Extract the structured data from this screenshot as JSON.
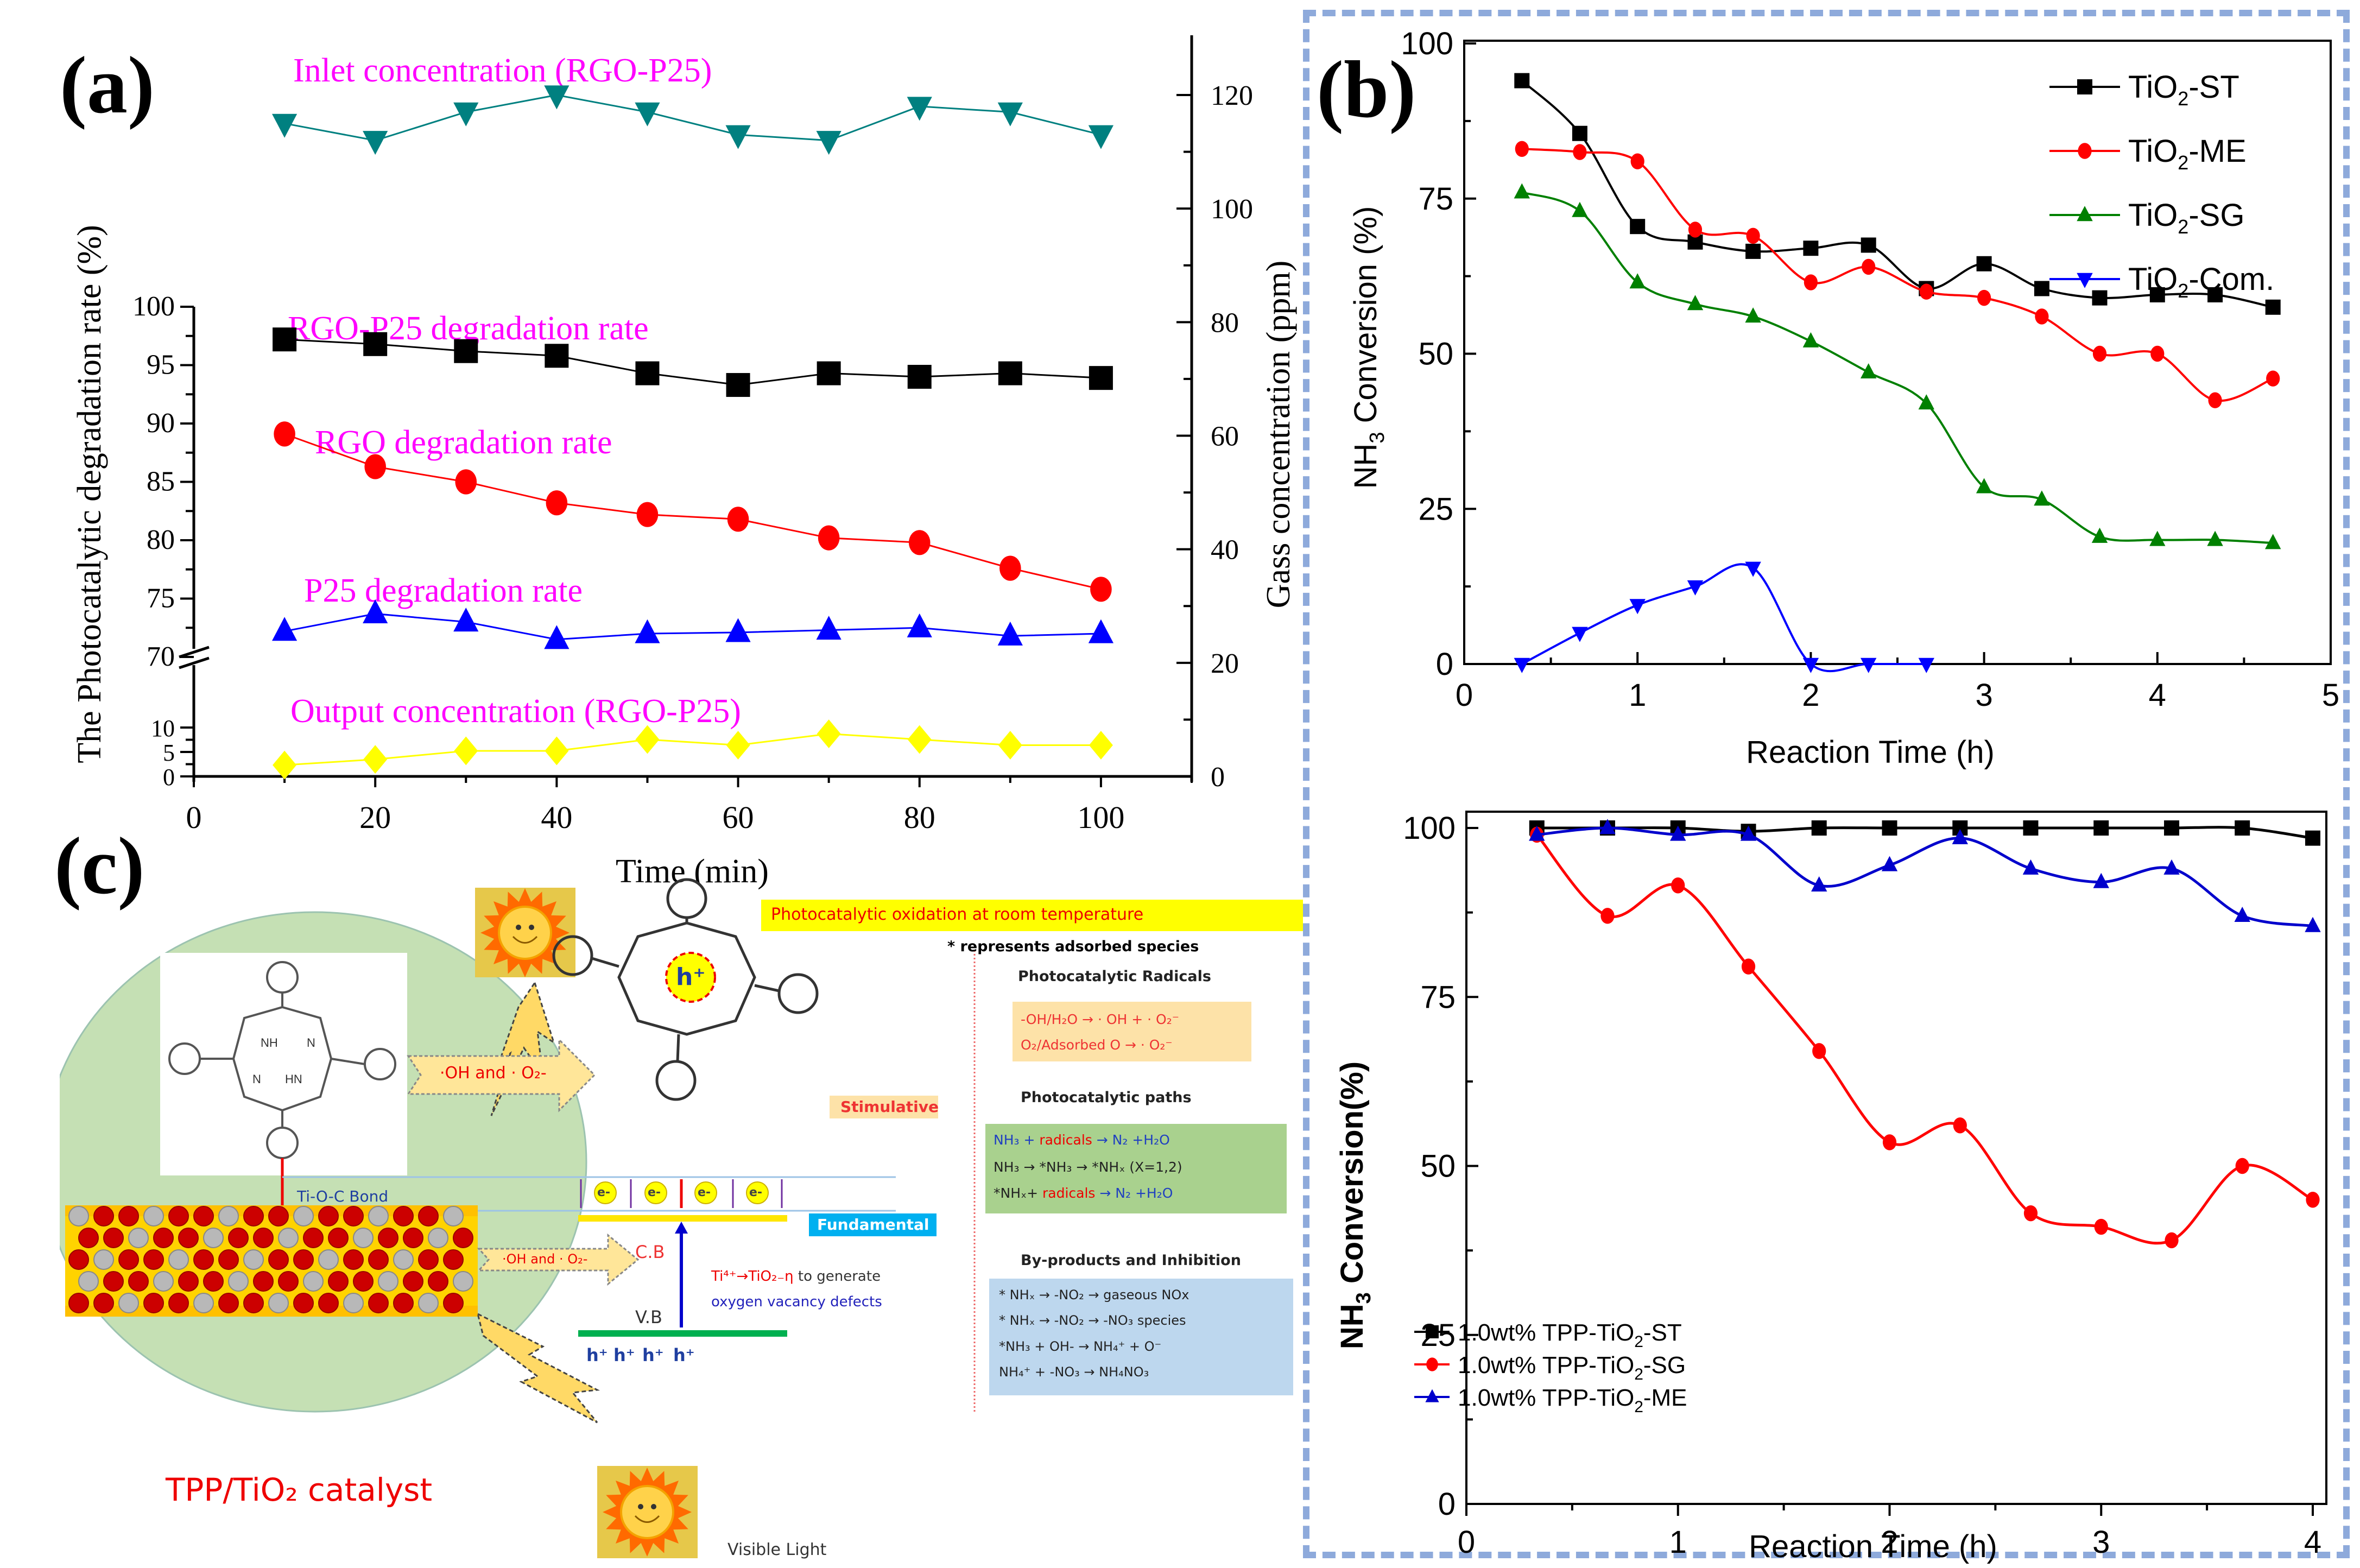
{
  "panels": {
    "a": {
      "label": "(a)"
    },
    "b": {
      "label": "(b)"
    },
    "c": {
      "label": "(c)"
    }
  },
  "chart_data": [
    {
      "id": "a",
      "type": "line",
      "title": "",
      "xlabel": "Time (min)",
      "ylabel": "The Photocatalytic degradation  rate (%)",
      "ylabel_right": "Gass  concentration (ppm)",
      "xlim": [
        0,
        110
      ],
      "xticks": [
        0,
        20,
        40,
        60,
        80,
        100
      ],
      "yticks_left": [
        0,
        5,
        10,
        70,
        75,
        80,
        85,
        90,
        95,
        100
      ],
      "ylim_left_upper": [
        70,
        100
      ],
      "ylim_left_lower": [
        0,
        10
      ],
      "axis_break_left": [
        10,
        70
      ],
      "ylim_right": [
        0,
        130
      ],
      "yticks_right": [
        0,
        20,
        40,
        60,
        80,
        100,
        120
      ],
      "grid": false,
      "x": [
        10,
        20,
        30,
        40,
        50,
        60,
        70,
        80,
        90,
        100
      ],
      "series": [
        {
          "name": "Inlet concentration (RGO-P25)",
          "axis": "right",
          "marker": "triangle-down",
          "color": "#008080",
          "values": [
            115,
            112,
            117,
            120,
            117,
            113,
            112,
            118,
            117,
            113
          ]
        },
        {
          "name": "RGO-P25 degradation  rate",
          "axis": "left",
          "marker": "square",
          "color": "#000000",
          "values": [
            97.2,
            96.8,
            96.2,
            95.8,
            94.3,
            93.3,
            94.3,
            94.0,
            94.3,
            93.9
          ]
        },
        {
          "name": "RGO degradation  rate",
          "axis": "left",
          "marker": "circle",
          "color": "#ff0000",
          "values": [
            89.1,
            86.3,
            85.0,
            83.2,
            82.2,
            81.8,
            80.2,
            79.8,
            77.6,
            75.8
          ]
        },
        {
          "name": "P25 degradation  rate",
          "axis": "left",
          "marker": "triangle-up",
          "color": "#0000ff",
          "values": [
            72.2,
            73.7,
            73.0,
            71.5,
            72.0,
            72.1,
            72.3,
            72.5,
            71.8,
            72.0
          ]
        },
        {
          "name": "Output concentration (RGO-P25)",
          "axis": "right",
          "marker": "diamond",
          "color": "#ffff00",
          "values": [
            2,
            3,
            4.5,
            4.5,
            6.5,
            5.5,
            7.5,
            6.5,
            5.5,
            5.5
          ]
        }
      ],
      "annotations": [
        {
          "text": "Inlet concentration (RGO-P25)",
          "color": "#ff00ff"
        },
        {
          "text": "RGO-P25 degradation  rate",
          "color": "#ff00ff"
        },
        {
          "text": "RGO degradation  rate",
          "color": "#ff00ff"
        },
        {
          "text": "P25 degradation  rate",
          "color": "#ff00ff"
        },
        {
          "text": "Output concentration (RGO-P25)",
          "color": "#ff00ff"
        }
      ]
    },
    {
      "id": "b-top",
      "type": "line",
      "title": "",
      "xlabel": "Reaction Time (h)",
      "ylabel": "NH3 Conversion (%)",
      "xlim": [
        0,
        5
      ],
      "ylim": [
        0,
        100
      ],
      "xticks": [
        0,
        1,
        2,
        3,
        4,
        5
      ],
      "yticks": [
        0,
        25,
        50,
        75,
        100
      ],
      "grid": false,
      "legend_position": "top-right",
      "series": [
        {
          "name": "TiO2-ST",
          "marker": "square",
          "color": "#000000",
          "x": [
            0.333,
            0.667,
            1.0,
            1.333,
            1.667,
            2.0,
            2.333,
            2.667,
            3.0,
            3.333,
            3.667,
            4.0,
            4.333,
            4.667
          ],
          "values": [
            94,
            85.5,
            70.5,
            68,
            66.5,
            67,
            67.5,
            60.5,
            64.5,
            60.5,
            59,
            59.5,
            59.5,
            57.5
          ]
        },
        {
          "name": "TiO2-ME",
          "marker": "circle",
          "color": "#ff0000",
          "x": [
            0.333,
            0.667,
            1.0,
            1.333,
            1.667,
            2.0,
            2.333,
            2.667,
            3.0,
            3.333,
            3.667,
            4.0,
            4.333,
            4.667
          ],
          "values": [
            83,
            82.5,
            81,
            70,
            69,
            61.5,
            64,
            60,
            59,
            56,
            50,
            50,
            42.5,
            46
          ]
        },
        {
          "name": "TiO2-SG",
          "marker": "triangle-up",
          "color": "#008000",
          "x": [
            0.333,
            0.667,
            1.0,
            1.333,
            1.667,
            2.0,
            2.333,
            2.667,
            3.0,
            3.333,
            3.667,
            4.0,
            4.333,
            4.667
          ],
          "values": [
            76,
            73,
            61.5,
            58,
            56,
            52,
            47,
            42,
            28.5,
            26.5,
            20.5,
            20,
            20,
            19.5
          ]
        },
        {
          "name": "TiO2-Com.",
          "marker": "triangle-down",
          "color": "#0000ff",
          "x": [
            0.333,
            0.667,
            1.0,
            1.333,
            1.667,
            2.0,
            2.333,
            2.667
          ],
          "values": [
            0,
            5,
            9.5,
            12.5,
            15.5,
            0,
            0,
            0
          ]
        }
      ],
      "legend": [
        {
          "base": "TiO",
          "sub": "2",
          "suffix": "-ST"
        },
        {
          "base": "TiO",
          "sub": "2",
          "suffix": "-ME"
        },
        {
          "base": "TiO",
          "sub": "2",
          "suffix": "-SG"
        },
        {
          "base": "TiO",
          "sub": "2",
          "suffix": "-Com."
        }
      ]
    },
    {
      "id": "b-bottom",
      "type": "line",
      "title": "",
      "xlabel": "Reaction Time (h)",
      "ylabel": "NH3 Conversion (%)",
      "xlim": [
        0,
        4.2
      ],
      "ylim": [
        0,
        100
      ],
      "xticks": [
        0,
        1,
        2,
        3,
        4
      ],
      "yticks": [
        0,
        25,
        50,
        75,
        100
      ],
      "grid": false,
      "legend_position": "bottom-left",
      "series": [
        {
          "name": "1.0wt% TPP-TiO2-ST",
          "marker": "square",
          "color": "#000000",
          "x": [
            0.333,
            0.667,
            1.0,
            1.333,
            1.667,
            2.0,
            2.333,
            2.667,
            3.0,
            3.333,
            3.667,
            4.0
          ],
          "values": [
            100,
            100,
            100,
            99.5,
            100,
            100,
            100,
            100,
            100,
            100,
            100,
            98.5
          ]
        },
        {
          "name": "1.0wt% TPP-TiO2-SG",
          "marker": "circle",
          "color": "#ff0000",
          "x": [
            0.333,
            0.667,
            1.0,
            1.333,
            1.667,
            2.0,
            2.333,
            2.667,
            3.0,
            3.333,
            3.667,
            4.0
          ],
          "values": [
            99,
            87,
            91.5,
            79.5,
            67,
            53.5,
            56,
            43,
            41,
            39,
            50,
            45
          ]
        },
        {
          "name": "1.0wt% TPP-TiO2-ME",
          "marker": "triangle-up",
          "color": "#0000cc",
          "x": [
            0.333,
            0.667,
            1.0,
            1.333,
            1.667,
            2.0,
            2.333,
            2.667,
            3.0,
            3.333,
            3.667,
            4.0
          ],
          "values": [
            99,
            100,
            99,
            99,
            91.5,
            94.5,
            98.5,
            94,
            92,
            94,
            87,
            85.5
          ]
        }
      ],
      "legend": [
        {
          "base": "1.0wt% TPP-TiO",
          "sub": "2",
          "suffix": "-ST"
        },
        {
          "base": "1.0wt% TPP-TiO",
          "sub": "2",
          "suffix": "-SG"
        },
        {
          "base": "1.0wt% TPP-TiO",
          "sub": "2",
          "suffix": "-ME"
        }
      ]
    }
  ],
  "diagram": {
    "catalyst_label": "TPP/TiO₂ catalyst",
    "bond_label": "Ti-O-C Bond",
    "radical_arrow_top": "·OH and · O₂-",
    "radical_arrow_bottom": "·OH and · O₂-",
    "h_plus_center": "h⁺",
    "electrons": [
      "e-",
      "e-",
      "e-",
      "e-"
    ],
    "holes": [
      "h⁺",
      "h⁺",
      "h⁺",
      "h⁺"
    ],
    "cb_label": "C.B",
    "vb_label": "V.B",
    "stimulative": "Stimulative",
    "fundamental": "Fundamental",
    "defect_line1_red": "Ti⁴⁺→TiO₂₋η",
    "defect_line1_black": " to generate",
    "defect_line2": "oxygen vacancy defects",
    "visible_light": "Visible Light",
    "headline": "Photocatalytic oxidation at room temperature",
    "note": "* represents adsorbed species",
    "radicals_title": "Photocatalytic Radicals",
    "radicals": [
      "-OH/H₂O → · OH + · O₂⁻",
      "O₂/Adsorbed O → · O₂⁻"
    ],
    "paths_title": "Photocatalytic paths",
    "paths": [
      {
        "a": "NH₃ + ",
        "b": "radicals",
        "c": " → N₂ +H₂O"
      },
      {
        "a": "NH₃ → *NH₃ → *NHₓ (X=1,2)",
        "b": "",
        "c": ""
      },
      {
        "a": "*NHₓ+ ",
        "b": "radicals",
        "c": " → N₂ +H₂O"
      }
    ],
    "byproducts_title": "By-products and Inhibition",
    "byproducts": [
      "* NHₓ → -NO₂ → gaseous NOx",
      "* NHₓ → -NO₂ → -NO₃ species",
      "*NH₃ + OH- → NH₄⁺ + O⁻",
      "NH₄⁺ + -NO₃ → NH₄NO₃"
    ],
    "colors": {
      "circle_bg": "#c5e0b4",
      "headline_bg": "#ffff00",
      "radicals_bg": "#fde2a8",
      "paths_bg": "#a9d18e",
      "byproducts_bg": "#bdd7ee",
      "fundamental_bg": "#00b0f0",
      "stimulative_bg": "#fde2a8",
      "accent_red": "#ff0000",
      "accent_blue": "#2222bb"
    }
  }
}
